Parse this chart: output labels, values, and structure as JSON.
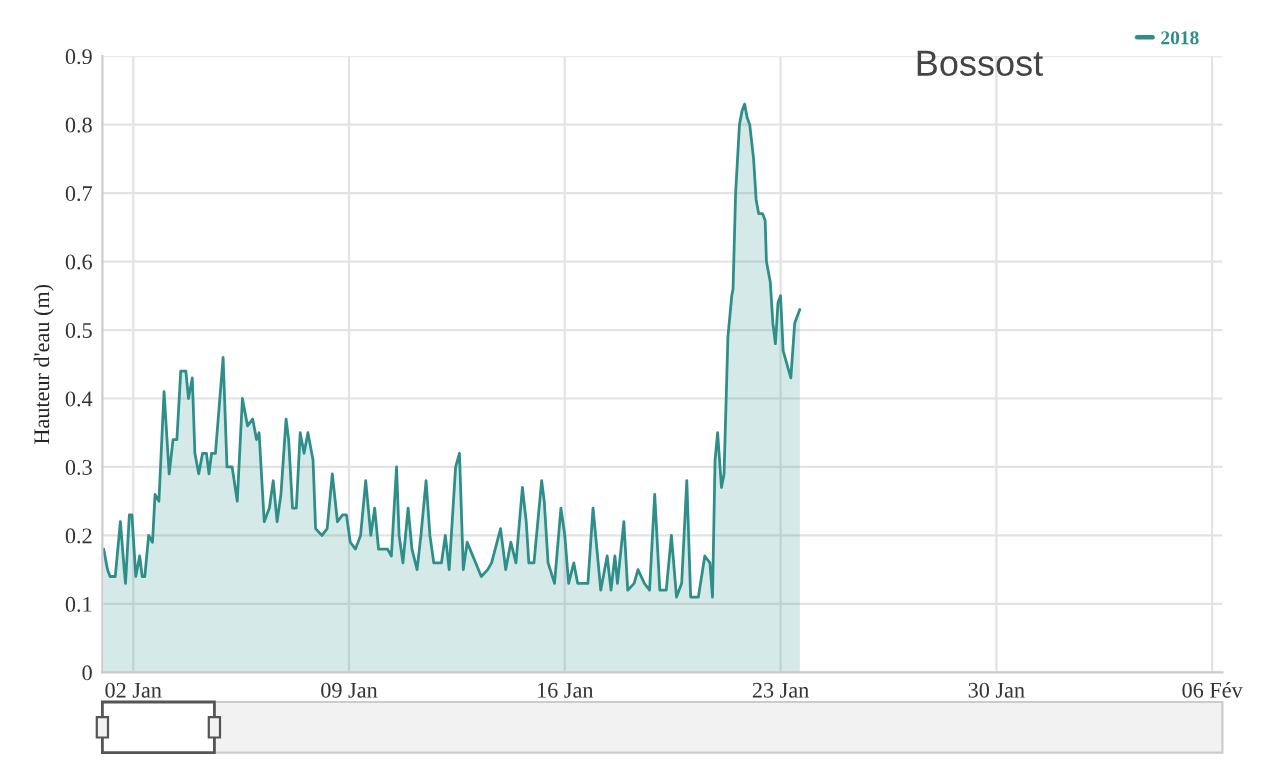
{
  "chart_data": {
    "type": "area",
    "title": "Bossost",
    "ylabel": "Hauteur d'eau (m)",
    "x": [
      "2018-01-01T01:00",
      "2018-01-01T04:00",
      "2018-01-01T06:00",
      "2018-01-01T10:00",
      "2018-01-01T13:00",
      "2018-01-01T14:00",
      "2018-01-01T17:00",
      "2018-01-01T18:00",
      "2018-01-01T21:00",
      "2018-01-01T23:00",
      "2018-01-02T02:00",
      "2018-01-02T05:00",
      "2018-01-02T07:00",
      "2018-01-02T09:00",
      "2018-01-02T12:00",
      "2018-01-02T15:00",
      "2018-01-02T17:00",
      "2018-01-02T20:00",
      "2018-01-03T00:00",
      "2018-01-03T04:00",
      "2018-01-03T07:00",
      "2018-01-03T10:00",
      "2018-01-03T13:00",
      "2018-01-03T17:00",
      "2018-01-03T19:00",
      "2018-01-03T22:00",
      "2018-01-04T00:00",
      "2018-01-04T03:00",
      "2018-01-04T06:00",
      "2018-01-04T09:00",
      "2018-01-04T11:00",
      "2018-01-04T13:00",
      "2018-01-04T16:00",
      "2018-01-04T19:00",
      "2018-01-04T22:00",
      "2018-01-05T01:00",
      "2018-01-05T05:00",
      "2018-01-05T09:00",
      "2018-01-05T13:00",
      "2018-01-05T17:00",
      "2018-01-05T21:00",
      "2018-01-06T00:00",
      "2018-01-06T02:00",
      "2018-01-06T06:00",
      "2018-01-06T10:00",
      "2018-01-06T13:00",
      "2018-01-06T16:00",
      "2018-01-06T19:00",
      "2018-01-06T23:00",
      "2018-01-07T01:00",
      "2018-01-07T04:00",
      "2018-01-07T07:00",
      "2018-01-07T10:00",
      "2018-01-07T13:00",
      "2018-01-07T16:00",
      "2018-01-07T20:00",
      "2018-01-07T22:00",
      "2018-01-08T03:00",
      "2018-01-08T07:00",
      "2018-01-08T11:00",
      "2018-01-08T15:00",
      "2018-01-08T19:00",
      "2018-01-08T22:00",
      "2018-01-09T01:00",
      "2018-01-09T05:00",
      "2018-01-09T09:00",
      "2018-01-09T13:00",
      "2018-01-09T17:00",
      "2018-01-09T20:00",
      "2018-01-09T23:00",
      "2018-01-10T04:00",
      "2018-01-10T06:00",
      "2018-01-10T09:00",
      "2018-01-10T13:00",
      "2018-01-10T15:00",
      "2018-01-10T18:00",
      "2018-01-10T22:00",
      "2018-01-11T01:00",
      "2018-01-11T05:00",
      "2018-01-11T08:00",
      "2018-01-11T12:00",
      "2018-01-11T15:00",
      "2018-01-11T18:00",
      "2018-01-12T00:00",
      "2018-01-12T03:00",
      "2018-01-12T06:00",
      "2018-01-12T11:00",
      "2018-01-12T14:00",
      "2018-01-12T17:00",
      "2018-01-12T20:00",
      "2018-01-13T07:00",
      "2018-01-13T12:00",
      "2018-01-13T15:00",
      "2018-01-13T22:00",
      "2018-01-14T02:00",
      "2018-01-14T06:00",
      "2018-01-14T10:00",
      "2018-01-14T15:00",
      "2018-01-14T18:00",
      "2018-01-14T20:00",
      "2018-01-15T00:00",
      "2018-01-15T06:00",
      "2018-01-15T08:00",
      "2018-01-15T11:00",
      "2018-01-15T16:00",
      "2018-01-15T21:00",
      "2018-01-16T00:00",
      "2018-01-16T03:00",
      "2018-01-16T07:00",
      "2018-01-16T10:00",
      "2018-01-16T18:00",
      "2018-01-16T22:00",
      "2018-01-17T01:00",
      "2018-01-17T04:00",
      "2018-01-17T09:00",
      "2018-01-17T12:00",
      "2018-01-17T15:00",
      "2018-01-17T17:00",
      "2018-01-17T22:00",
      "2018-01-18T01:00",
      "2018-01-18T06:00",
      "2018-01-18T09:00",
      "2018-01-18T14:00",
      "2018-01-18T18:00",
      "2018-01-18T22:00",
      "2018-01-19T02:00",
      "2018-01-19T07:00",
      "2018-01-19T11:00",
      "2018-01-19T15:00",
      "2018-01-19T19:00",
      "2018-01-19T23:00",
      "2018-01-20T02:00",
      "2018-01-20T08:00",
      "2018-01-20T13:00",
      "2018-01-20T17:00",
      "2018-01-20T19:00",
      "2018-01-20T21:00",
      "2018-01-20T23:00",
      "2018-01-21T02:00",
      "2018-01-21T04:00",
      "2018-01-21T07:00",
      "2018-01-21T10:00",
      "2018-01-21T11:00",
      "2018-01-21T13:00",
      "2018-01-21T16:00",
      "2018-01-21T18:00",
      "2018-01-21T20:00",
      "2018-01-21T22:00",
      "2018-01-22T00:00",
      "2018-01-22T03:00",
      "2018-01-22T05:00",
      "2018-01-22T07:00",
      "2018-01-22T10:00",
      "2018-01-22T12:00",
      "2018-01-22T13:00",
      "2018-01-22T16:00",
      "2018-01-22T18:00",
      "2018-01-22T20:00",
      "2018-01-22T22:00",
      "2018-01-23T00:00",
      "2018-01-23T02:00",
      "2018-01-23T05:00",
      "2018-01-23T08:00",
      "2018-01-23T11:00",
      "2018-01-23T13:00",
      "2018-01-23T15:00"
    ],
    "series": [
      {
        "name": "2018",
        "color": "#2e8f8a",
        "values": [
          0.18,
          0.15,
          0.14,
          0.14,
          0.2,
          0.22,
          0.15,
          0.13,
          0.23,
          0.23,
          0.14,
          0.17,
          0.14,
          0.14,
          0.2,
          0.19,
          0.26,
          0.25,
          0.41,
          0.29,
          0.34,
          0.34,
          0.44,
          0.44,
          0.4,
          0.43,
          0.32,
          0.29,
          0.32,
          0.32,
          0.29,
          0.32,
          0.32,
          0.39,
          0.46,
          0.3,
          0.3,
          0.25,
          0.4,
          0.36,
          0.37,
          0.34,
          0.35,
          0.22,
          0.24,
          0.28,
          0.22,
          0.26,
          0.37,
          0.34,
          0.24,
          0.24,
          0.35,
          0.32,
          0.35,
          0.31,
          0.21,
          0.2,
          0.21,
          0.29,
          0.22,
          0.23,
          0.23,
          0.19,
          0.18,
          0.2,
          0.28,
          0.2,
          0.24,
          0.18,
          0.18,
          0.18,
          0.17,
          0.3,
          0.2,
          0.16,
          0.24,
          0.18,
          0.15,
          0.2,
          0.28,
          0.2,
          0.16,
          0.16,
          0.2,
          0.15,
          0.3,
          0.32,
          0.15,
          0.19,
          0.14,
          0.15,
          0.16,
          0.21,
          0.15,
          0.19,
          0.16,
          0.27,
          0.22,
          0.16,
          0.16,
          0.28,
          0.25,
          0.16,
          0.13,
          0.24,
          0.2,
          0.13,
          0.16,
          0.13,
          0.13,
          0.24,
          0.18,
          0.12,
          0.17,
          0.12,
          0.17,
          0.13,
          0.22,
          0.12,
          0.13,
          0.15,
          0.13,
          0.12,
          0.26,
          0.12,
          0.12,
          0.2,
          0.11,
          0.13,
          0.28,
          0.11,
          0.11,
          0.17,
          0.16,
          0.11,
          0.31,
          0.35,
          0.27,
          0.29,
          0.49,
          0.55,
          0.56,
          0.7,
          0.8,
          0.82,
          0.83,
          0.81,
          0.8,
          0.75,
          0.69,
          0.67,
          0.67,
          0.66,
          0.6,
          0.57,
          0.51,
          0.48,
          0.54,
          0.55,
          0.47,
          0.45,
          0.43,
          0.51,
          0.52,
          0.53
        ]
      }
    ],
    "xlim": [
      "2018-01-01T00:00",
      "2018-02-06T08:00"
    ],
    "xticks": [
      {
        "value": "2018-01-02",
        "label": "02 Jan"
      },
      {
        "value": "2018-01-09",
        "label": "09 Jan"
      },
      {
        "value": "2018-01-16",
        "label": "16 Jan"
      },
      {
        "value": "2018-01-23",
        "label": "23 Jan"
      },
      {
        "value": "2018-01-30",
        "label": "30 Jan"
      },
      {
        "value": "2018-02-06",
        "label": "06 Fév"
      }
    ],
    "ylim": [
      0,
      0.9
    ],
    "yticks": [
      0,
      0.1,
      0.2,
      0.3,
      0.4,
      0.5,
      0.6,
      0.7,
      0.8,
      0.9
    ],
    "grid": true,
    "legend": "top right"
  }
}
